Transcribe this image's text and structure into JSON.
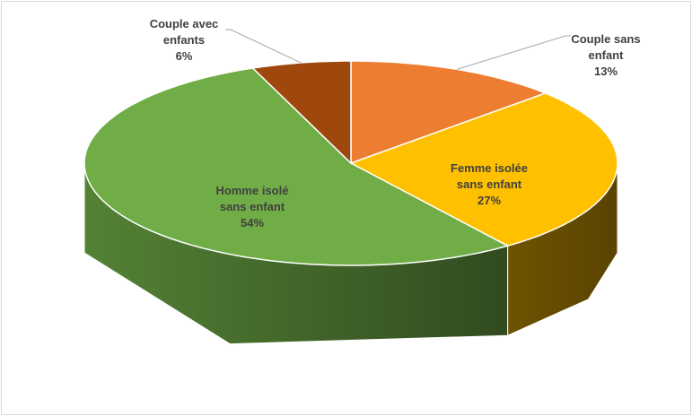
{
  "chart_data": {
    "type": "pie",
    "categories": [
      "Couple sans enfant",
      "Femme isolée sans enfant",
      "Homme isolé sans enfant",
      "Couple avec enfants"
    ],
    "values": [
      13,
      27,
      54,
      6
    ],
    "value_labels": [
      "13%",
      "27%",
      "54%",
      "6%"
    ],
    "colors": [
      "#ED7D31",
      "#FFC000",
      "#70AD47",
      "#9E480E"
    ]
  }
}
